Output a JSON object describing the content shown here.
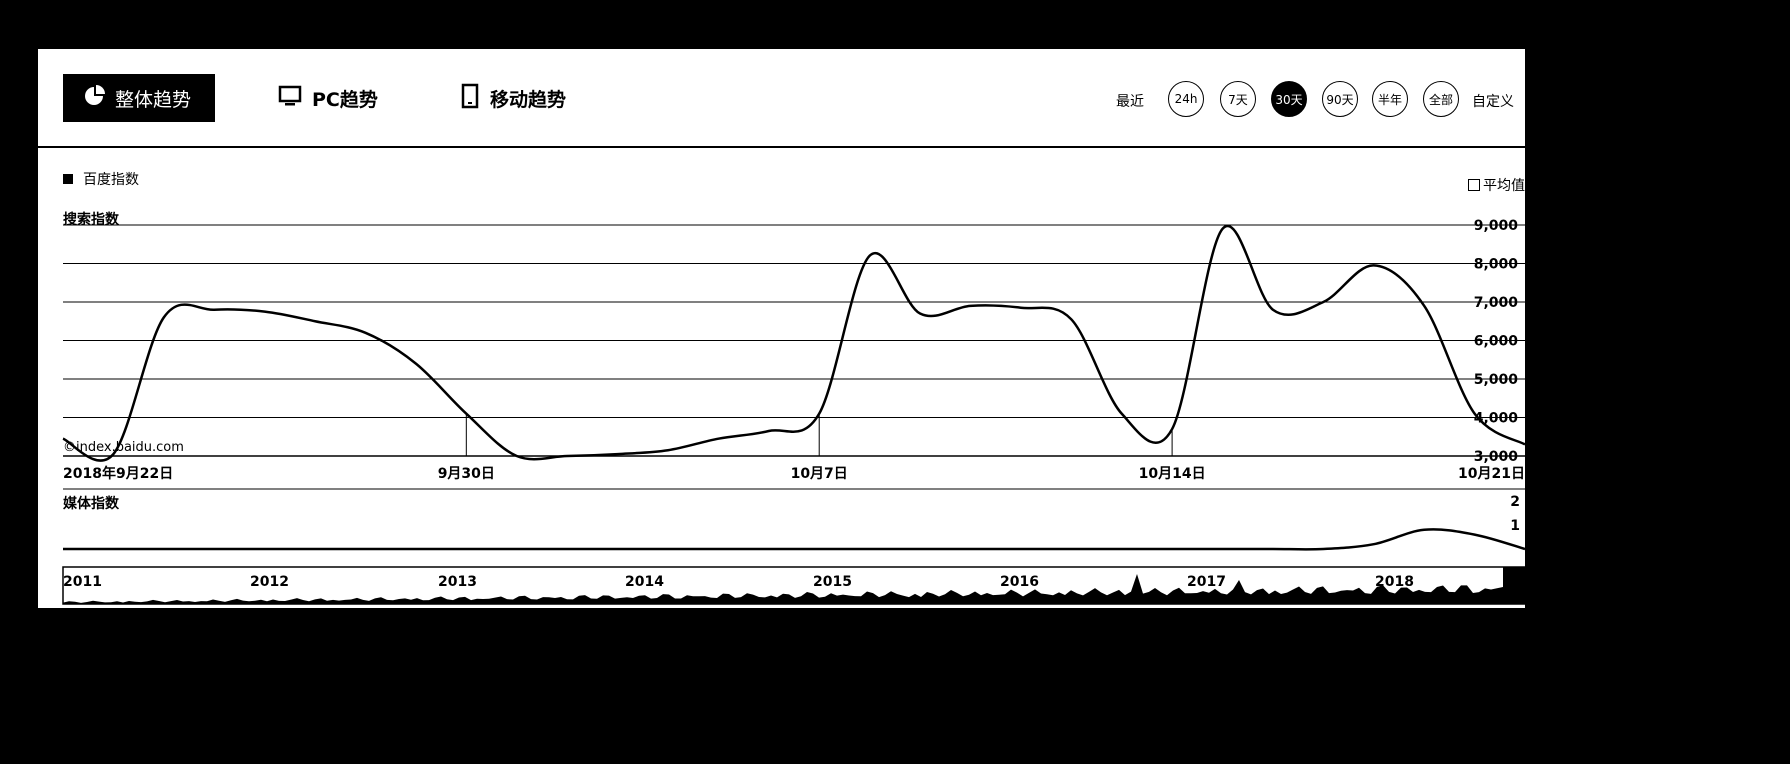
{
  "tabs": [
    {
      "label": "整体趋势",
      "icon": "pie-chart-icon",
      "active": true
    },
    {
      "label": "PC趋势",
      "icon": "monitor-icon",
      "active": false
    },
    {
      "label": "移动趋势",
      "icon": "tablet-icon",
      "active": false
    }
  ],
  "range": {
    "prefix": "最近",
    "options": [
      "24h",
      "7天",
      "30天",
      "90天",
      "半年",
      "全部"
    ],
    "selected": "30天",
    "custom": "自定义"
  },
  "legend": {
    "label": "百度指数"
  },
  "average_toggle": {
    "label": "平均值"
  },
  "watermark": "©index.baidu.com",
  "chart_data": [
    {
      "type": "line",
      "ylabel": "搜索指数",
      "ylim": [
        3000,
        9000
      ],
      "yticks": [
        "9,000",
        "8,000",
        "7,000",
        "6,000",
        "5,000",
        "4,000",
        "3,000"
      ],
      "xticks": [
        "2018年9月22日",
        "9月30日",
        "10月7日",
        "10月14日",
        "10月21日"
      ],
      "x": [
        "9/22",
        "9/23",
        "9/24",
        "9/25",
        "9/26",
        "9/27",
        "9/28",
        "9/29",
        "9/30",
        "10/1",
        "10/2",
        "10/3",
        "10/4",
        "10/5",
        "10/6",
        "10/7",
        "10/8",
        "10/9",
        "10/10",
        "10/11",
        "10/12",
        "10/13",
        "10/14",
        "10/15",
        "10/16",
        "10/17",
        "10/18",
        "10/19",
        "10/20",
        "10/21"
      ],
      "series": [
        {
          "values": [
            3450,
            3050,
            6600,
            6800,
            6750,
            6500,
            6200,
            5400,
            4100,
            3000,
            3000,
            3050,
            3150,
            3450,
            3650,
            4100,
            8200,
            6700,
            6900,
            6850,
            6550,
            4100,
            3700,
            8900,
            6800,
            7000,
            7950,
            6900,
            4100,
            3300
          ]
        }
      ]
    },
    {
      "type": "line",
      "ylabel": "媒体指数",
      "yticks": [
        "2",
        "1"
      ],
      "ylim": [
        0,
        2
      ],
      "x": [
        "9/22",
        "9/23",
        "9/24",
        "9/25",
        "9/26",
        "9/27",
        "9/28",
        "9/29",
        "9/30",
        "10/1",
        "10/2",
        "10/3",
        "10/4",
        "10/5",
        "10/6",
        "10/7",
        "10/8",
        "10/9",
        "10/10",
        "10/11",
        "10/12",
        "10/13",
        "10/14",
        "10/15",
        "10/16",
        "10/17",
        "10/18",
        "10/19",
        "10/20",
        "10/21"
      ],
      "series": [
        {
          "values": [
            0,
            0,
            0,
            0,
            0,
            0,
            0,
            0,
            0,
            0,
            0,
            0,
            0,
            0,
            0,
            0,
            0,
            0,
            0,
            0,
            0,
            0,
            0,
            0,
            0,
            0,
            0.2,
            0.8,
            0.6,
            0
          ]
        }
      ]
    },
    {
      "type": "area",
      "xticks": [
        "2011",
        "2012",
        "2013",
        "2014",
        "2015",
        "2016",
        "2017",
        "2018"
      ]
    }
  ]
}
